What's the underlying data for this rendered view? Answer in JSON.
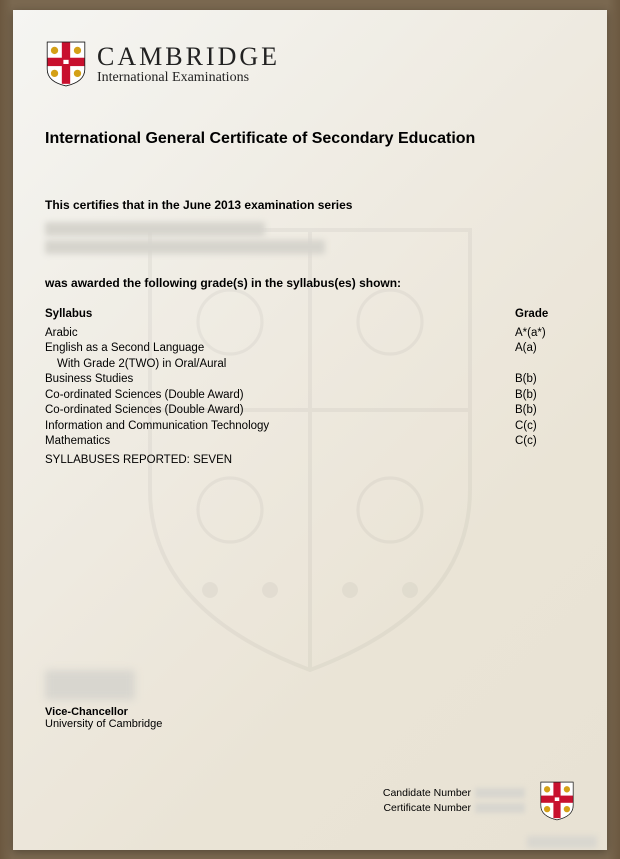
{
  "brand": {
    "name": "CAMBRIDGE",
    "subtitle": "International Examinations"
  },
  "title": "International General Certificate of Secondary Education",
  "certifies_line": "This certifies that in the June 2013 examination series",
  "awarded_line": "was awarded the following grade(s) in the syllabus(es) shown:",
  "headers": {
    "syllabus": "Syllabus",
    "grade": "Grade"
  },
  "rows": [
    {
      "syllabus": "Arabic",
      "grade": "A*(a*)",
      "indent": false
    },
    {
      "syllabus": "English as a Second Language",
      "grade": "A(a)",
      "indent": false
    },
    {
      "syllabus": "With Grade 2(TWO) in Oral/Aural",
      "grade": "",
      "indent": true
    },
    {
      "syllabus": "Business Studies",
      "grade": "B(b)",
      "indent": false
    },
    {
      "syllabus": "Co-ordinated Sciences (Double Award)",
      "grade": "B(b)",
      "indent": false
    },
    {
      "syllabus": "Co-ordinated Sciences (Double Award)",
      "grade": "B(b)",
      "indent": false
    },
    {
      "syllabus": "Information and Communication Technology",
      "grade": "C(c)",
      "indent": false
    },
    {
      "syllabus": "Mathematics",
      "grade": "C(c)",
      "indent": false
    }
  ],
  "reported": "SYLLABUSES REPORTED: SEVEN",
  "signature": {
    "title": "Vice-Chancellor",
    "institution": "University of Cambridge"
  },
  "footer": {
    "candidate_label": "Candidate Number",
    "certificate_label": "Certificate Number"
  },
  "shield_colors": {
    "bg": "#ffffff",
    "cross": "#c8102e",
    "lion": "#d4a017",
    "border": "#222"
  }
}
